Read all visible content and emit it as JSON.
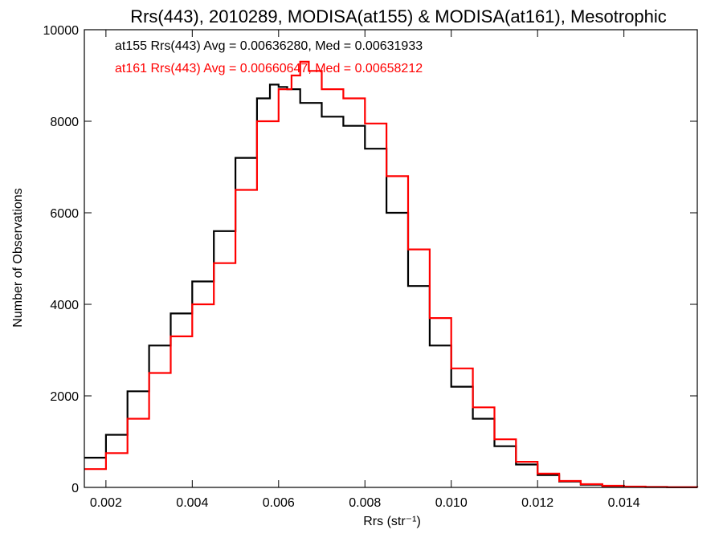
{
  "chart_data": {
    "type": "line",
    "title": "Rrs(443), 2010289, MODISA(at155) & MODISA(at161), Mesotrophic",
    "xlabel": "Rrs (str⁻¹)",
    "ylabel": "Number of Observations",
    "xlim": [
      0.0015,
      0.0157
    ],
    "ylim": [
      0,
      10000
    ],
    "xticks": [
      0.002,
      0.004,
      0.006,
      0.008,
      0.01,
      0.012,
      0.014
    ],
    "xtick_labels": [
      "0.002",
      "0.004",
      "0.006",
      "0.008",
      "0.010",
      "0.012",
      "0.014"
    ],
    "yticks": [
      0,
      2000,
      4000,
      6000,
      8000,
      10000
    ],
    "ytick_labels": [
      "0",
      "2000",
      "4000",
      "6000",
      "8000",
      "10000"
    ],
    "annotations": [
      {
        "text": "at155 Rrs(443) Avg = 0.00636280, Med = 0.00631933",
        "color": "#000000"
      },
      {
        "text": "at161 Rrs(443) Avg = 0.00660647, Med = 0.00658212",
        "color": "#ff0000"
      }
    ],
    "series": [
      {
        "color": "#000000",
        "x": [
          0.0015,
          0.002,
          0.0025,
          0.003,
          0.0035,
          0.004,
          0.0045,
          0.005,
          0.0055,
          0.0058,
          0.006,
          0.0062,
          0.0065,
          0.007,
          0.0075,
          0.008,
          0.0085,
          0.009,
          0.0095,
          0.01,
          0.0105,
          0.011,
          0.0115,
          0.012,
          0.0125,
          0.013,
          0.0135,
          0.014,
          0.0145,
          0.015,
          0.0157
        ],
        "y": [
          650,
          1150,
          2100,
          3100,
          3800,
          4500,
          5600,
          7200,
          8500,
          8800,
          8750,
          8700,
          8400,
          8100,
          7900,
          7400,
          6000,
          4400,
          3100,
          2200,
          1500,
          900,
          500,
          270,
          130,
          60,
          30,
          15,
          8,
          4,
          2
        ]
      },
      {
        "color": "#ff0000",
        "x": [
          0.0015,
          0.002,
          0.0025,
          0.003,
          0.0035,
          0.004,
          0.0045,
          0.005,
          0.0055,
          0.006,
          0.0063,
          0.0065,
          0.0067,
          0.007,
          0.0075,
          0.008,
          0.0085,
          0.009,
          0.0095,
          0.01,
          0.0105,
          0.011,
          0.0115,
          0.012,
          0.0125,
          0.013,
          0.0135,
          0.014,
          0.0145,
          0.015,
          0.0157
        ],
        "y": [
          400,
          750,
          1500,
          2500,
          3300,
          4000,
          4900,
          6500,
          8000,
          8700,
          9000,
          9300,
          9100,
          8700,
          8500,
          7950,
          6800,
          5200,
          3700,
          2600,
          1750,
          1050,
          560,
          300,
          140,
          70,
          35,
          17,
          9,
          5,
          2
        ]
      }
    ]
  }
}
